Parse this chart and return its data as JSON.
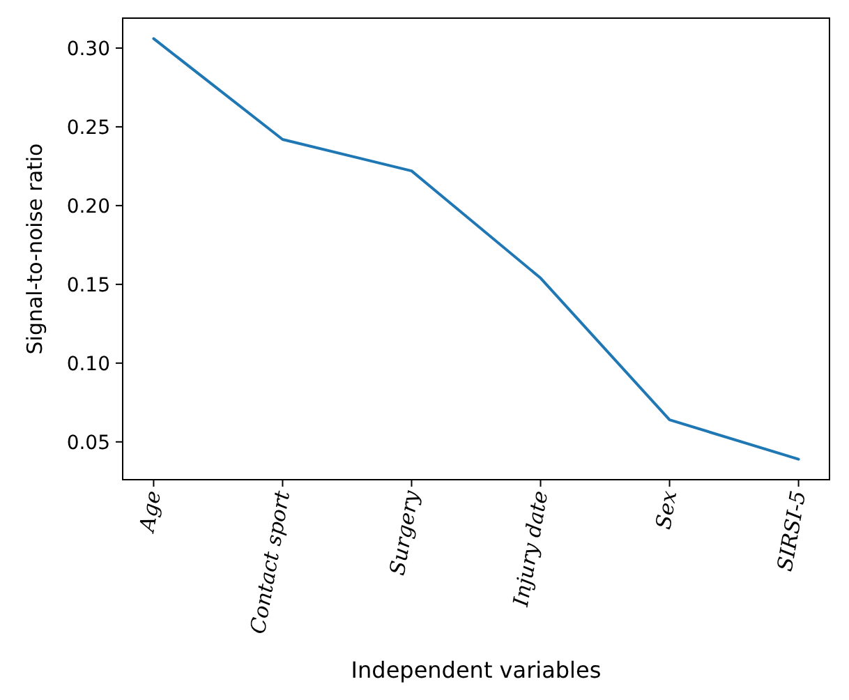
{
  "chart_data": {
    "type": "line",
    "xlabel": "Independent variables",
    "ylabel": "Signal-to-noise ratio",
    "categories": [
      "Age",
      "Contact sport",
      "Surgery",
      "Injury date",
      "Sex",
      "SIRSI-5"
    ],
    "series": [
      {
        "color": "#1f77b4",
        "values": [
          0.306,
          0.242,
          0.222,
          0.154,
          0.064,
          0.039
        ]
      }
    ],
    "ylim": [
      0.026,
      0.319
    ],
    "yticks": [
      {
        "value": 0.05,
        "label": "0.05"
      },
      {
        "value": 0.1,
        "label": "0.10"
      },
      {
        "value": 0.15,
        "label": "0.15"
      },
      {
        "value": 0.2,
        "label": "0.20"
      },
      {
        "value": 0.25,
        "label": "0.25"
      },
      {
        "value": 0.3,
        "label": "0.30"
      }
    ],
    "grid": false,
    "marker": "none",
    "line_style": "solid"
  }
}
